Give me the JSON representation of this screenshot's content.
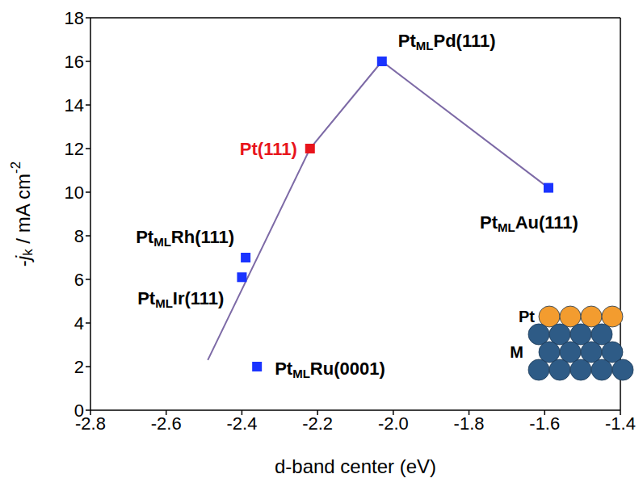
{
  "chart_data": {
    "type": "scatter",
    "x_label": "d-band center (eV)",
    "y_label": "-jk / mA cm-2",
    "xlim": [
      -2.8,
      -1.4
    ],
    "xticks": [
      -2.8,
      -2.6,
      -2.4,
      -2.2,
      {
        "value": -2,
        "label": "-2.0"
      },
      -1.8,
      -1.6,
      -1.4
    ],
    "ylim": [
      0,
      18
    ],
    "yticks": [
      0,
      2,
      4,
      6,
      8,
      10,
      12,
      14,
      16,
      18
    ],
    "grid": false,
    "series": [
      {
        "type": "scatter",
        "marker": "square",
        "x": [
          -2.39,
          -2.4,
          -2.36,
          -2.22,
          -2.03,
          -1.59
        ],
        "values": [
          7.0,
          6.1,
          2.0,
          12.0,
          16.0,
          10.2
        ],
        "labels": [
          "PtMLRh(111)",
          "PtMLIr(111)",
          "PtMLRu(0001)",
          "Pt(111)",
          "PtMLPd(111)",
          "PtMLAu(111)"
        ],
        "colors": [
          "#1a33ff",
          "#1a33ff",
          "#1a33ff",
          "#e8141c",
          "#1a33ff",
          "#1a33ff"
        ]
      },
      {
        "type": "line",
        "line_style": "solid",
        "color": "#7d6aa6",
        "x": [
          -2.49,
          -2.22,
          -2.03,
          -1.59
        ],
        "values": [
          2.3,
          12.0,
          16.0,
          10.2
        ]
      }
    ],
    "inset": {
      "labels": [
        "Pt",
        "M"
      ]
    }
  }
}
